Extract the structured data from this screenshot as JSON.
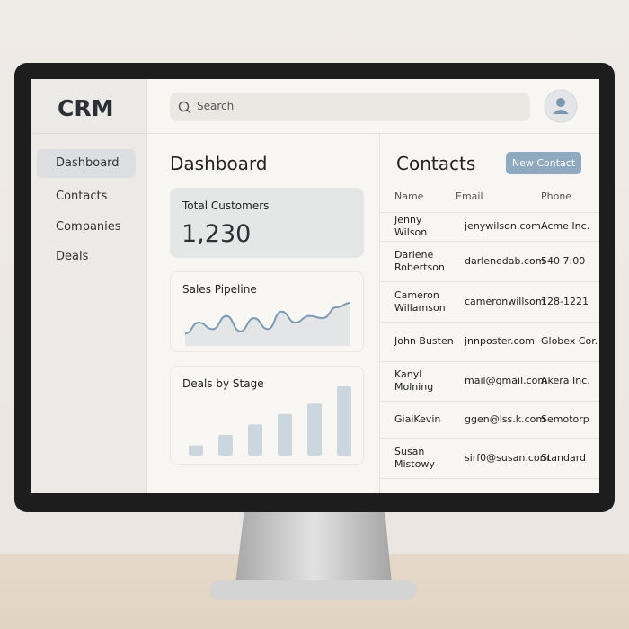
{
  "sidebar": {
    "logo": "CRM",
    "nav": [
      "Dashboard",
      "Contacts",
      "Companies",
      "Deals"
    ]
  },
  "header": {
    "search_placeholder": "Search"
  },
  "dashboard": {
    "title": "Dashboard",
    "total_customers": {
      "label": "Total Customers",
      "value": "1,230"
    },
    "sales_pipeline": {
      "title": "Sales Pipeline",
      "values": [
        2,
        4.5,
        3,
        6,
        2.5,
        5.5,
        3,
        7,
        4.5,
        6,
        5.5,
        8,
        9
      ]
    },
    "deals_by_stage": {
      "title": "Deals by Stage",
      "values": [
        1.5,
        3,
        4.5,
        6,
        7.5,
        10
      ]
    }
  },
  "contacts": {
    "title": "Contacts",
    "button": "New Contact",
    "columns": [
      "Name",
      "Email",
      "Phone"
    ],
    "rows": [
      [
        "Jenny Wilson",
        "jenywilson.com",
        "Acme Inc."
      ],
      [
        "Darlene Robertson",
        "darlenedab.com",
        "540 7:00"
      ],
      [
        "Cameron Willamson",
        "cameronwillsom",
        "128-1221"
      ],
      [
        "John Busten",
        "jnnposter.com",
        "Globex Cor."
      ],
      [
        "Kanyl Molning",
        "mail@gmail.com",
        "Akera Inc."
      ],
      [
        "GiaiKevin",
        "ggen@lss.k.com",
        "Semotorp"
      ],
      [
        "Susan Mistowy",
        "sirf0@susan.com",
        "Standard"
      ]
    ]
  }
}
